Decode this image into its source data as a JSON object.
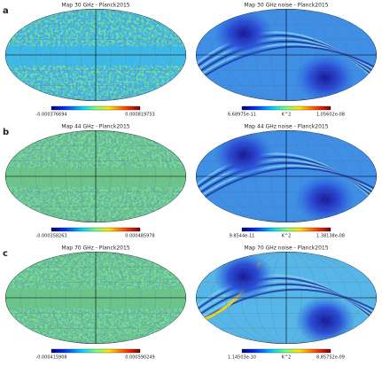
{
  "panels": [
    {
      "label": "a",
      "left": {
        "title": "Map 30 GHz - Planck2015",
        "min": "-0.000376694",
        "max": "0.000819753"
      },
      "right": {
        "title": "Map 30 GHz noise - Planck2015",
        "min": "6.68975e-11",
        "unit": "K^2",
        "max": "1.05602e-08"
      }
    },
    {
      "label": "b",
      "left": {
        "title": "Map 44 GHz - Planck2015",
        "min": "-0.000358263",
        "max": "0.000485978"
      },
      "right": {
        "title": "Map 44 GHz noise - Planck2015",
        "min": "9.8544e-11",
        "unit": "K^2",
        "max": "1.38138e-08"
      }
    },
    {
      "label": "c",
      "left": {
        "title": "Map 70 GHz - Planck2015",
        "min": "-0.000415908",
        "max": "0.000590249"
      },
      "right": {
        "title": "Map 70 GHz noise - Planck2015",
        "min": "1.14503e-10",
        "unit": "K^2",
        "max": "8.85752e-09"
      }
    }
  ]
}
